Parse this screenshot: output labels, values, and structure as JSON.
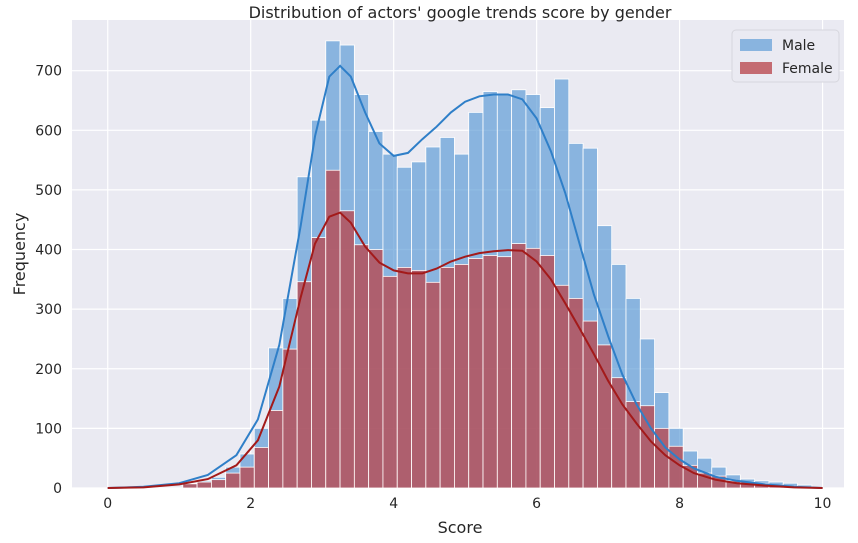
{
  "chart_data": {
    "type": "histogram",
    "title": "Distribution of actors' google trends score by gender",
    "xlabel": "Score",
    "ylabel": "Frequency",
    "xlim": [
      -0.5,
      10.3
    ],
    "ylim": [
      0,
      785
    ],
    "xticks": [
      0,
      2,
      4,
      6,
      8,
      10
    ],
    "yticks": [
      0,
      100,
      200,
      300,
      400,
      500,
      600,
      700
    ],
    "grid": true,
    "legend_position": "top-right",
    "bin_start": 1.05,
    "bin_width": 0.2,
    "series": [
      {
        "name": "Male",
        "color": "#5b9bd5",
        "kde_color": "#2f7fc8",
        "values": [
          8,
          12,
          18,
          35,
          57,
          100,
          235,
          318,
          522,
          617,
          750,
          743,
          660,
          598,
          560,
          538,
          547,
          572,
          588,
          560,
          630,
          665,
          660,
          668,
          660,
          638,
          686,
          578,
          570,
          440,
          375,
          318,
          250,
          160,
          100,
          62,
          50,
          35,
          22,
          15,
          12,
          10,
          8,
          5
        ],
        "kde": [
          [
            0,
            0
          ],
          [
            0.5,
            2
          ],
          [
            1.0,
            8
          ],
          [
            1.4,
            22
          ],
          [
            1.8,
            55
          ],
          [
            2.1,
            115
          ],
          [
            2.4,
            240
          ],
          [
            2.7,
            440
          ],
          [
            2.9,
            590
          ],
          [
            3.1,
            690
          ],
          [
            3.25,
            708
          ],
          [
            3.4,
            690
          ],
          [
            3.6,
            630
          ],
          [
            3.8,
            578
          ],
          [
            4.0,
            557
          ],
          [
            4.2,
            562
          ],
          [
            4.4,
            585
          ],
          [
            4.6,
            606
          ],
          [
            4.8,
            630
          ],
          [
            5.0,
            648
          ],
          [
            5.2,
            657
          ],
          [
            5.4,
            660
          ],
          [
            5.6,
            660
          ],
          [
            5.8,
            652
          ],
          [
            6.0,
            620
          ],
          [
            6.2,
            565
          ],
          [
            6.4,
            495
          ],
          [
            6.6,
            410
          ],
          [
            6.8,
            325
          ],
          [
            7.0,
            255
          ],
          [
            7.2,
            190
          ],
          [
            7.4,
            140
          ],
          [
            7.6,
            100
          ],
          [
            7.8,
            68
          ],
          [
            8.0,
            48
          ],
          [
            8.2,
            33
          ],
          [
            8.5,
            19
          ],
          [
            8.8,
            12
          ],
          [
            9.2,
            6
          ],
          [
            9.6,
            2
          ],
          [
            10.0,
            0
          ]
        ]
      },
      {
        "name": "Female",
        "color": "#b8474e",
        "kde_color": "#a31a1a",
        "values": [
          7,
          10,
          14,
          25,
          35,
          68,
          130,
          233,
          346,
          420,
          533,
          465,
          408,
          400,
          355,
          370,
          365,
          345,
          370,
          375,
          385,
          390,
          388,
          410,
          402,
          390,
          340,
          318,
          280,
          240,
          185,
          145,
          138,
          100,
          70,
          38,
          25,
          20,
          12,
          10,
          8,
          5,
          3,
          2
        ],
        "kde": [
          [
            0,
            0
          ],
          [
            0.5,
            1
          ],
          [
            1.0,
            6
          ],
          [
            1.4,
            15
          ],
          [
            1.8,
            38
          ],
          [
            2.1,
            80
          ],
          [
            2.4,
            170
          ],
          [
            2.7,
            320
          ],
          [
            2.9,
            410
          ],
          [
            3.1,
            455
          ],
          [
            3.25,
            462
          ],
          [
            3.4,
            445
          ],
          [
            3.6,
            405
          ],
          [
            3.8,
            378
          ],
          [
            4.0,
            365
          ],
          [
            4.2,
            360
          ],
          [
            4.4,
            360
          ],
          [
            4.6,
            368
          ],
          [
            4.8,
            380
          ],
          [
            5.0,
            388
          ],
          [
            5.2,
            394
          ],
          [
            5.4,
            397
          ],
          [
            5.6,
            399
          ],
          [
            5.8,
            398
          ],
          [
            6.0,
            380
          ],
          [
            6.2,
            350
          ],
          [
            6.4,
            310
          ],
          [
            6.6,
            268
          ],
          [
            6.8,
            225
          ],
          [
            7.0,
            180
          ],
          [
            7.2,
            140
          ],
          [
            7.4,
            108
          ],
          [
            7.6,
            78
          ],
          [
            7.8,
            55
          ],
          [
            8.0,
            38
          ],
          [
            8.2,
            25
          ],
          [
            8.5,
            14
          ],
          [
            8.8,
            8
          ],
          [
            9.2,
            4
          ],
          [
            9.6,
            1
          ],
          [
            10.0,
            0
          ]
        ]
      }
    ]
  }
}
